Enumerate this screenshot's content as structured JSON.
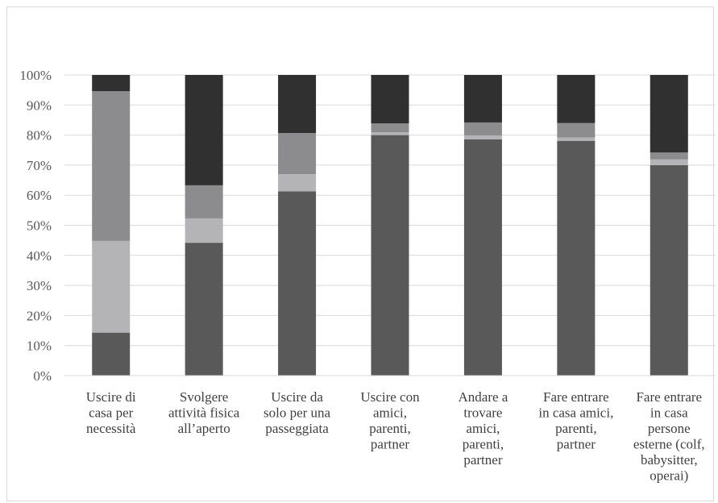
{
  "chart_data": {
    "type": "bar",
    "stacked": true,
    "percent_stacked": true,
    "title": "",
    "xlabel": "",
    "ylabel": "",
    "ylim": [
      0,
      100
    ],
    "y_ticks": [
      "0%",
      "10%",
      "20%",
      "30%",
      "40%",
      "50%",
      "60%",
      "70%",
      "80%",
      "90%",
      "100%"
    ],
    "grid": true,
    "legend": "none",
    "categories": [
      [
        "Uscire di",
        "casa per",
        "necessità"
      ],
      [
        "Svolgere",
        "attività fisica",
        "all’aperto"
      ],
      [
        "Uscire da",
        "solo per una",
        "passeggiata"
      ],
      [
        "Uscire con",
        "amici,",
        "parenti,",
        "partner"
      ],
      [
        "Andare a",
        "trovare",
        "amici,",
        "parenti,",
        "partner"
      ],
      [
        "Fare entrare",
        "in casa amici,",
        "parenti,",
        "partner"
      ],
      [
        "Fare entrare",
        "in casa",
        "persone",
        "esterne (colf,",
        "babysitter,",
        "operai)"
      ]
    ],
    "series": [
      {
        "color": "#595959",
        "values": [
          14.3,
          44.2,
          61.3,
          80.0,
          78.6,
          78.1,
          70.0
        ]
      },
      {
        "color": "#b4b4b6",
        "values": [
          30.5,
          8.1,
          5.7,
          0.9,
          1.3,
          1.1,
          1.9
        ]
      },
      {
        "color": "#8c8c8e",
        "values": [
          49.8,
          11.0,
          13.7,
          3.0,
          4.3,
          4.8,
          2.3
        ]
      },
      {
        "color": "#303030",
        "values": [
          5.4,
          36.7,
          19.3,
          16.1,
          15.8,
          16.0,
          25.8
        ]
      }
    ]
  }
}
